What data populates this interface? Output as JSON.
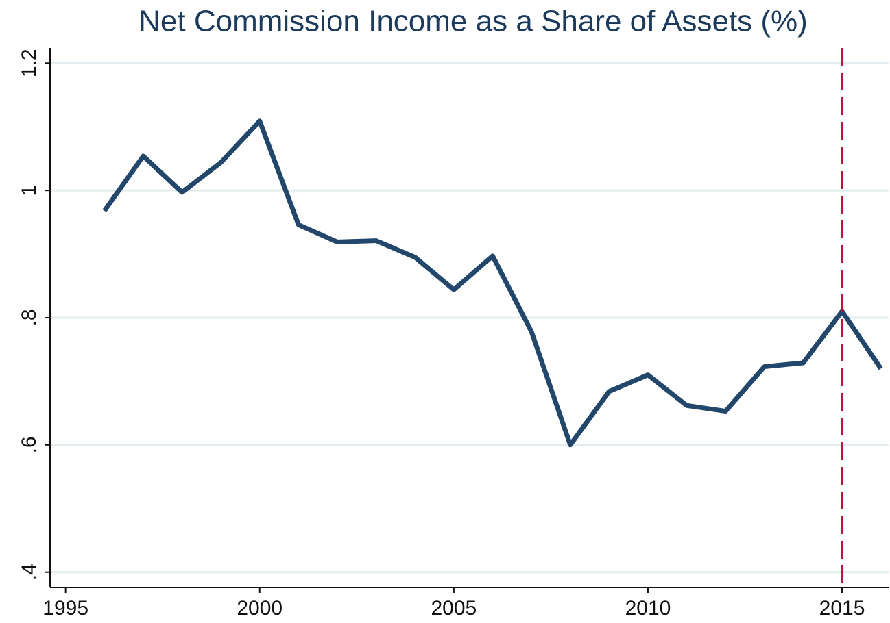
{
  "chart_data": {
    "type": "line",
    "title": "Net Commission Income as a Share of Assets (%)",
    "x": [
      1996,
      1997,
      1998,
      1999,
      2000,
      2001,
      2002,
      2003,
      2004,
      2005,
      2006,
      2007,
      2008,
      2009,
      2010,
      2011,
      2012,
      2013,
      2014,
      2015,
      2016
    ],
    "series": [
      {
        "color": "#22476b",
        "values": [
          0.968,
          1.054,
          0.997,
          1.044,
          1.109,
          0.946,
          0.919,
          0.921,
          0.895,
          0.844,
          0.897,
          0.778,
          0.6,
          0.684,
          0.71,
          0.662,
          0.653,
          0.723,
          0.729,
          0.81,
          0.72
        ]
      }
    ],
    "xlim": [
      1994.6,
      2016.2
    ],
    "xticks": [
      1995,
      2000,
      2005,
      2010,
      2015
    ],
    "ylim": [
      0.376,
      1.224
    ],
    "yticks": [
      {
        "value": 0.4,
        "label": ".4"
      },
      {
        "value": 0.6,
        "label": ".6"
      },
      {
        "value": 0.8,
        "label": ".8"
      },
      1,
      1.2
    ],
    "grid": true,
    "reference_line": {
      "x": 2015,
      "color": "#c4123f"
    }
  }
}
